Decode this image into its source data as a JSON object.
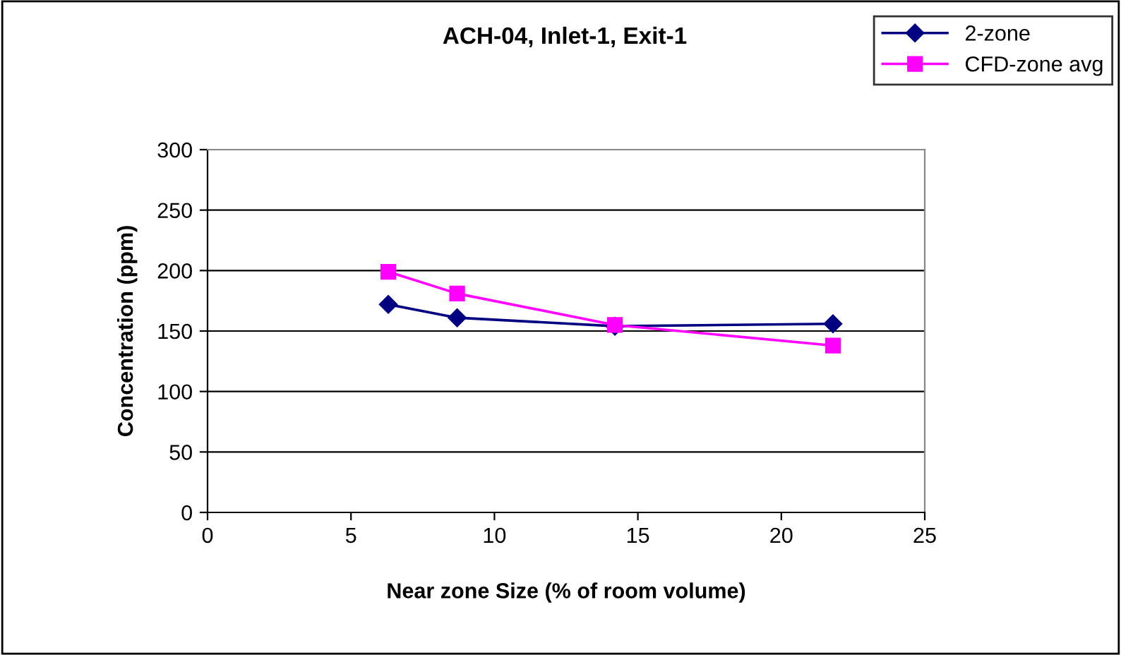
{
  "chart_data": {
    "type": "line",
    "title": "ACH-04, Inlet-1, Exit-1",
    "xlabel": "Near zone Size (% of room volume)",
    "ylabel": "Concentration (ppm)",
    "series": [
      {
        "name": "2-zone",
        "color": "#000080",
        "marker": "diamond",
        "x": [
          6.3,
          8.7,
          14.2,
          21.8
        ],
        "values": [
          172,
          161,
          154,
          156
        ]
      },
      {
        "name": "CFD-zone avg",
        "color": "#ff00ff",
        "marker": "square",
        "x": [
          6.3,
          8.7,
          14.2,
          21.8
        ],
        "values": [
          199,
          181,
          155,
          138
        ]
      }
    ],
    "xlim": [
      0,
      25
    ],
    "xticks": [
      0,
      5,
      10,
      15,
      20,
      25
    ],
    "ylim": [
      0,
      300
    ],
    "yticks": [
      0,
      50,
      100,
      150,
      200,
      250,
      300
    ],
    "grid": "y",
    "legend": "top right"
  }
}
